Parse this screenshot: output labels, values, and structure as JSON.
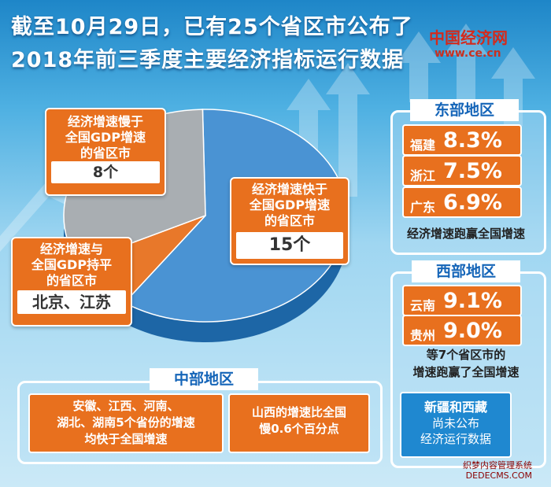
{
  "header": {
    "title_line1": "截至10月29日，已有25个省区市公布了",
    "title_line2": "2018年前三季度主要经济指标运行数据",
    "logo": "中国经济网",
    "logo_url": "www.ce.cn"
  },
  "chart_data": {
    "type": "pie",
    "slices": [
      {
        "label": "经济增速快于全国GDP增速的省区市",
        "value": 15,
        "value_label": "15个",
        "color": "#4a93d3"
      },
      {
        "label": "经济增速与全国GDP持平的省区市",
        "value": 2,
        "value_label": "北京、江苏",
        "color": "#e8782a"
      },
      {
        "label": "经济增速慢于全国GDP增速的省区市",
        "value": 8,
        "value_label": "8个",
        "color": "#a9aeb2"
      }
    ]
  },
  "callouts": {
    "faster": {
      "l1": "经济增速快于",
      "l2": "全国GDP增速",
      "l3": "的省区市",
      "value": "15个"
    },
    "equal": {
      "l1": "经济增速与",
      "l2": "全国GDP持平",
      "l3": "的省区市",
      "value": "北京、江苏"
    },
    "slower": {
      "l1": "经济增速慢于",
      "l2": "全国GDP增速",
      "l3": "的省区市",
      "value": "8个"
    }
  },
  "east": {
    "title": "东部地区",
    "items": [
      {
        "name": "福建",
        "pct": "8.3%"
      },
      {
        "name": "浙江",
        "pct": "7.5%"
      },
      {
        "name": "广东",
        "pct": "6.9%"
      }
    ],
    "note": "经济增速跑赢全国增速"
  },
  "west": {
    "title": "西部地区",
    "items": [
      {
        "name": "云南",
        "pct": "9.1%"
      },
      {
        "name": "贵州",
        "pct": "9.0%"
      }
    ],
    "note1": "等7个省区市的",
    "note2": "增速跑赢了全国增速",
    "pending1": "新疆和西藏",
    "pending2": "尚未公布",
    "pending3": "经济运行数据"
  },
  "central": {
    "title": "中部地区",
    "box1_l1": "安徽、江西、河南、",
    "box1_l2": "湖北、湖南5个省份的增速",
    "box1_l3": "均快于全国增速",
    "box2_l1": "山西的增速比全国",
    "box2_l2": "慢0.6个百分点"
  },
  "watermark": {
    "l1": "织梦内容管理系统",
    "l2": "DEDECMS.COM"
  }
}
